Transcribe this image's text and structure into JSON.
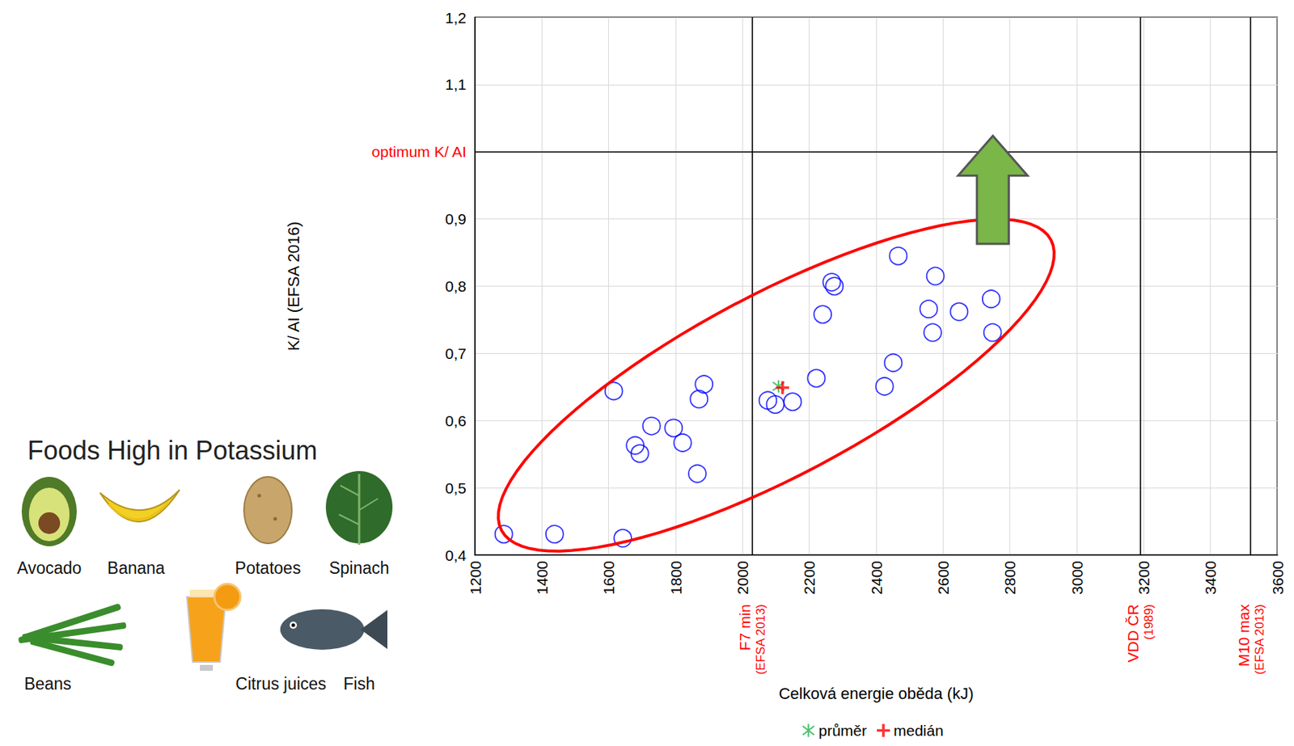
{
  "chart_data": {
    "type": "scatter",
    "x_label": "Celková energie oběda (kJ)",
    "y_label": "K/ AI (EFSA 2016)",
    "xlim": [
      1200,
      3600
    ],
    "xticks": [
      1200,
      1400,
      1600,
      1800,
      2000,
      2200,
      2400,
      2600,
      2800,
      3000,
      3200,
      3400,
      3600
    ],
    "ylim": [
      0.4,
      1.2
    ],
    "yticks": [
      {
        "value": 0.4,
        "label": "0,4"
      },
      {
        "value": 0.5,
        "label": "0,5"
      },
      {
        "value": 0.6,
        "label": "0,6"
      },
      {
        "value": 0.7,
        "label": "0,7"
      },
      {
        "value": 0.8,
        "label": "0,8"
      },
      {
        "value": 0.9,
        "label": "0,9"
      },
      {
        "value": 1.0,
        "label": "optimum K/ AI",
        "color": "#ff0000"
      },
      {
        "value": 1.1,
        "label": "1,1"
      },
      {
        "value": 1.2,
        "label": "1,2"
      }
    ],
    "grid": true,
    "legend": "bottom",
    "series": [
      {
        "x": [
          1286,
          1438,
          1642,
          1615,
          1679,
          1693,
          1728,
          1794,
          1821,
          1870,
          1885,
          1865,
          2076,
          2098,
          2150,
          2221,
          2240,
          2267,
          2275,
          2425,
          2451,
          2466,
          2557,
          2569,
          2577,
          2648,
          2744,
          2748
        ],
        "values": [
          0.431,
          0.431,
          0.425,
          0.644,
          0.563,
          0.551,
          0.592,
          0.589,
          0.567,
          0.632,
          0.654,
          0.521,
          0.63,
          0.624,
          0.628,
          0.663,
          0.758,
          0.806,
          0.8,
          0.651,
          0.686,
          0.845,
          0.766,
          0.731,
          0.815,
          0.762,
          0.781,
          0.731
        ],
        "color": "#0000ff",
        "marker": "open_circle"
      },
      {
        "name": "průměr",
        "x": [
          2108
        ],
        "values": [
          0.651
        ],
        "color": "#22b14c",
        "marker": "asterisk"
      },
      {
        "name": "medián",
        "x": [
          2120
        ],
        "values": [
          0.649
        ],
        "color": "#ff0000",
        "marker": "plus"
      }
    ],
    "annotations": [
      {
        "axis": "x",
        "value": 2029,
        "text": [
          "F7 min",
          "(EFSA 2013)"
        ],
        "color": "#ff0000"
      },
      {
        "axis": "x",
        "value": 3190,
        "text": [
          "VDD ČR",
          "(1989)"
        ],
        "color": "#ff0000"
      },
      {
        "axis": "x",
        "value": 3520,
        "text": [
          "M10 max",
          "(EFSA 2013)"
        ],
        "color": "#ff0000"
      },
      {
        "axis": "y",
        "value": 1.0
      }
    ]
  },
  "side_panel": {
    "title": "Foods High in Potassium",
    "items": [
      "Avocado",
      "Banana",
      "Potatoes",
      "Spinach",
      "Beans",
      "Citrus juices",
      "Fish"
    ]
  }
}
